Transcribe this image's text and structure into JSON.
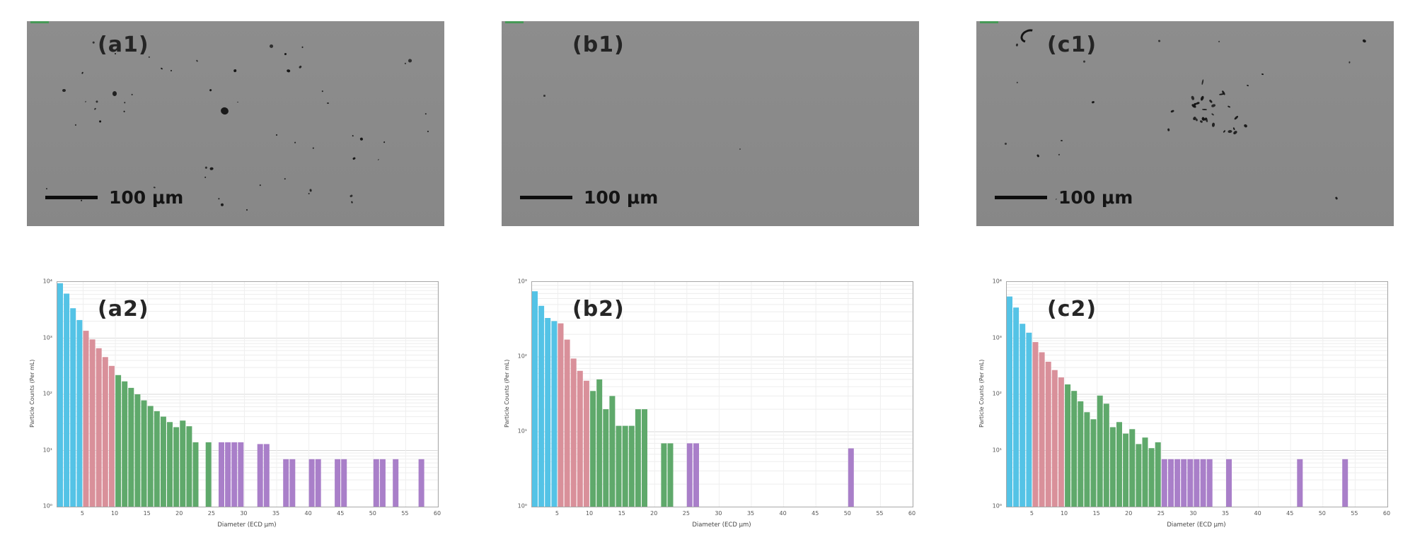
{
  "figure": {
    "sem_panels": [
      {
        "label": "(a1)",
        "scale_bar": "100 μm",
        "particle_pattern": "scattered-many"
      },
      {
        "label": "(b1)",
        "scale_bar": "100 μm",
        "particle_pattern": "clean"
      },
      {
        "label": "(c1)",
        "scale_bar": "100 μm",
        "particle_pattern": "clustered"
      }
    ]
  },
  "colors": {
    "cyan": "#54c3e6",
    "pink": "#d9909a",
    "green": "#5fa96b",
    "purple": "#a97fc9",
    "sem_bg": "#8d8d8d",
    "particle": "#141414",
    "marker_green": "#2f9e44"
  },
  "size_classes": [
    {
      "max": 5,
      "color": "cyan"
    },
    {
      "max": 10,
      "color": "pink"
    },
    {
      "max": 25,
      "color": "green"
    },
    {
      "max": 1000,
      "color": "purple"
    }
  ],
  "chart_data": [
    {
      "type": "bar",
      "label": "(a2)",
      "xlabel": "Diameter (ECD μm)",
      "ylabel": "Particle Counts (Per mL)",
      "x_range": [
        1,
        60
      ],
      "x_ticks": [
        5,
        10,
        15,
        20,
        25,
        30,
        35,
        40,
        45,
        50,
        55,
        60
      ],
      "y_log_range": [
        1,
        10000
      ],
      "y_ticks": [
        "10⁴",
        "10³",
        "10²",
        "10¹",
        "10⁰"
      ],
      "grid": true,
      "bars": [
        [
          1,
          9500
        ],
        [
          2,
          6200
        ],
        [
          3,
          3400
        ],
        [
          4,
          2100
        ],
        [
          5,
          1350
        ],
        [
          6,
          950
        ],
        [
          7,
          660
        ],
        [
          8,
          460
        ],
        [
          9,
          320
        ],
        [
          10,
          220
        ],
        [
          11,
          170
        ],
        [
          12,
          130
        ],
        [
          13,
          100
        ],
        [
          14,
          78
        ],
        [
          15,
          62
        ],
        [
          16,
          50
        ],
        [
          17,
          40
        ],
        [
          18,
          32
        ],
        [
          19,
          26
        ],
        [
          20,
          34
        ],
        [
          21,
          27
        ],
        [
          22,
          14
        ],
        [
          24,
          14
        ],
        [
          26,
          14
        ],
        [
          27,
          14
        ],
        [
          28,
          14
        ],
        [
          29,
          14
        ],
        [
          32,
          13
        ],
        [
          33,
          13
        ],
        [
          36,
          7
        ],
        [
          37,
          7
        ],
        [
          40,
          7
        ],
        [
          41,
          7
        ],
        [
          44,
          7
        ],
        [
          45,
          7
        ],
        [
          50,
          7
        ],
        [
          51,
          7
        ],
        [
          53,
          7
        ],
        [
          57,
          7
        ]
      ]
    },
    {
      "type": "bar",
      "label": "(b2)",
      "xlabel": "Diameter (ECD μm)",
      "ylabel": "Particle Counts (Per mL)",
      "x_range": [
        1,
        60
      ],
      "x_ticks": [
        5,
        10,
        15,
        20,
        25,
        30,
        35,
        40,
        45,
        50,
        55,
        60
      ],
      "y_log_range": [
        1,
        1000
      ],
      "y_ticks": [
        "10³",
        "10²",
        "10¹",
        "10⁰"
      ],
      "grid": true,
      "bars": [
        [
          1,
          750
        ],
        [
          2,
          480
        ],
        [
          3,
          330
        ],
        [
          4,
          300
        ],
        [
          5,
          280
        ],
        [
          6,
          170
        ],
        [
          7,
          95
        ],
        [
          8,
          65
        ],
        [
          9,
          48
        ],
        [
          10,
          35
        ],
        [
          11,
          50
        ],
        [
          12,
          20
        ],
        [
          13,
          30
        ],
        [
          14,
          12
        ],
        [
          15,
          12
        ],
        [
          16,
          12
        ],
        [
          17,
          20
        ],
        [
          18,
          20
        ],
        [
          21,
          7
        ],
        [
          22,
          7
        ],
        [
          25,
          7
        ],
        [
          26,
          7
        ],
        [
          50,
          6
        ]
      ]
    },
    {
      "type": "bar",
      "label": "(c2)",
      "xlabel": "Diameter (ECD μm)",
      "ylabel": "Particle Counts (Per mL)",
      "x_range": [
        1,
        60
      ],
      "x_ticks": [
        5,
        10,
        15,
        20,
        25,
        30,
        35,
        40,
        45,
        50,
        55,
        60
      ],
      "y_log_range": [
        1,
        10000
      ],
      "y_ticks": [
        "10⁴",
        "10³",
        "10²",
        "10¹",
        "10⁰"
      ],
      "grid": true,
      "bars": [
        [
          1,
          5500
        ],
        [
          2,
          3500
        ],
        [
          3,
          1800
        ],
        [
          4,
          1250
        ],
        [
          5,
          850
        ],
        [
          6,
          560
        ],
        [
          7,
          380
        ],
        [
          8,
          270
        ],
        [
          9,
          200
        ],
        [
          10,
          150
        ],
        [
          11,
          115
        ],
        [
          12,
          75
        ],
        [
          13,
          48
        ],
        [
          14,
          36
        ],
        [
          15,
          95
        ],
        [
          16,
          68
        ],
        [
          17,
          26
        ],
        [
          18,
          32
        ],
        [
          19,
          20
        ],
        [
          20,
          24
        ],
        [
          21,
          13
        ],
        [
          22,
          17
        ],
        [
          23,
          11
        ],
        [
          24,
          14
        ],
        [
          25,
          7
        ],
        [
          26,
          7
        ],
        [
          27,
          7
        ],
        [
          28,
          7
        ],
        [
          29,
          7
        ],
        [
          30,
          7
        ],
        [
          31,
          7
        ],
        [
          32,
          7
        ],
        [
          35,
          7
        ],
        [
          46,
          7
        ],
        [
          53,
          7
        ]
      ]
    }
  ]
}
